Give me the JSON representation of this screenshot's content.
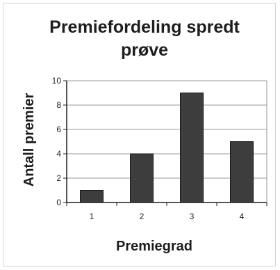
{
  "chart_data": {
    "type": "bar",
    "title": "Premiefordeling spredt prøve",
    "title_lines": [
      "Premiefordeling spredt",
      "prøve"
    ],
    "xlabel": "Premiegrad",
    "ylabel": "Antall premier",
    "categories": [
      "1",
      "2",
      "3",
      "4"
    ],
    "values": [
      1,
      4,
      9,
      5
    ],
    "ylim": [
      0,
      10
    ],
    "yticks": [
      0,
      2,
      4,
      6,
      8,
      10
    ],
    "grid": true,
    "legend": "none",
    "colors": {
      "bar": "#3d3d3d",
      "bar_stroke": "#1a1a1a",
      "gridline": "#9a9a9a",
      "axis": "#1e1e1e",
      "text": "#1e1e1e"
    }
  }
}
